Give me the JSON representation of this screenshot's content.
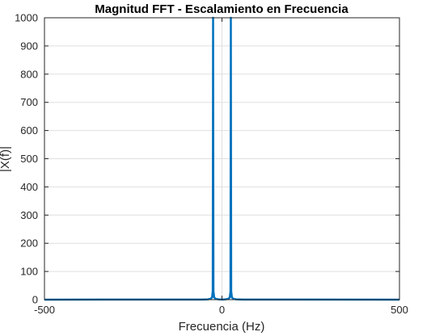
{
  "chart_data": {
    "type": "line",
    "title": "Magnitud FFT - Escalamiento en Frecuencia",
    "xlabel": "Frecuencia (Hz)",
    "ylabel": "|X(f)|",
    "xlim": [
      -500,
      500
    ],
    "ylim": [
      0,
      1000
    ],
    "xticks": [
      -500,
      0,
      500
    ],
    "yticks": [
      0,
      100,
      200,
      300,
      400,
      500,
      600,
      700,
      800,
      900,
      1000
    ],
    "grid": true,
    "series": [
      {
        "color": "#0072BD",
        "x": [
          -500,
          -60,
          -40,
          -32,
          -28,
          -26,
          -25,
          -24,
          -22,
          -18,
          -10,
          0,
          10,
          18,
          22,
          24,
          25,
          26,
          28,
          32,
          40,
          60,
          500
        ],
        "y": [
          0,
          0.5,
          1,
          3,
          8,
          30,
          1000,
          30,
          8,
          3,
          1,
          0.5,
          1,
          3,
          8,
          30,
          1000,
          30,
          8,
          3,
          1,
          0.5,
          0
        ]
      }
    ]
  }
}
